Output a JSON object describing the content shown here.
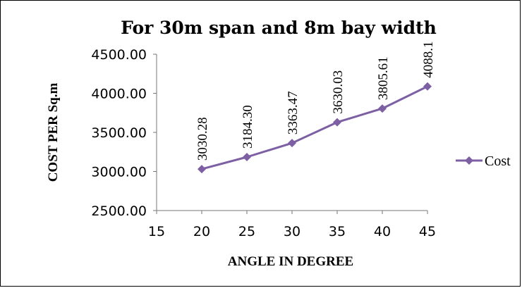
{
  "chart_data": {
    "type": "line",
    "title": "For 30m span and 8m bay width",
    "xlabel": "ANGLE IN DEGREE",
    "ylabel": "COST PER Sq.m",
    "x_ticks": [
      "15",
      "20",
      "25",
      "30",
      "35",
      "40",
      "45"
    ],
    "y_ticks": [
      "2500.00",
      "3000.00",
      "3500.00",
      "4000.00",
      "4500.00"
    ],
    "xlim": [
      15,
      45
    ],
    "ylim": [
      2500,
      4500
    ],
    "grid": false,
    "legend_position": "right",
    "series": [
      {
        "name": "Cost",
        "color": "#7d5fa3",
        "marker": "diamond",
        "x": [
          20,
          25,
          30,
          35,
          40,
          45
        ],
        "values": [
          3030.28,
          3184.3,
          3363.47,
          3630.03,
          3805.61,
          4088.1
        ],
        "labels": [
          "3030.28",
          "3184.30",
          "3363.47",
          "3630.03",
          "3805.61",
          "4088.1"
        ]
      }
    ]
  }
}
